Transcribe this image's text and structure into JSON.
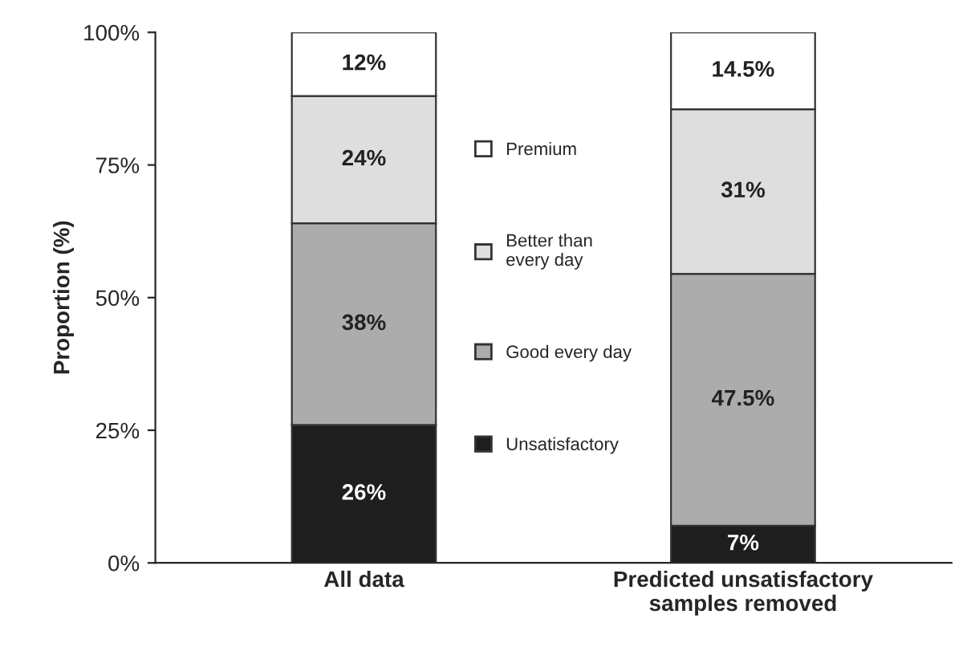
{
  "chart_data": {
    "type": "bar",
    "stacked": true,
    "ylabel": "Proportion (%)",
    "categories": [
      "All data",
      "Predicted unsatisfactory\nsamples removed"
    ],
    "series": [
      {
        "name": "Unsatisfactory",
        "color": "#1e1e1e",
        "values": [
          26,
          7
        ],
        "value_labels": [
          "26%",
          "7%"
        ]
      },
      {
        "name": "Good every day",
        "color": "#acacac",
        "values": [
          38,
          47.5
        ],
        "value_labels": [
          "38%",
          "47.5%"
        ]
      },
      {
        "name": "Better than\nevery day",
        "color": "#dedede",
        "values": [
          24,
          31
        ],
        "value_labels": [
          "24%",
          "31%"
        ]
      },
      {
        "name": "Premium",
        "color": "#ffffff",
        "values": [
          12,
          14.5
        ],
        "value_labels": [
          "12%",
          "14.5%"
        ]
      }
    ],
    "ylim": [
      0,
      100
    ],
    "yticks": [
      {
        "value": 0,
        "label": "0%"
      },
      {
        "value": 25,
        "label": "25%"
      },
      {
        "value": 50,
        "label": "50%"
      },
      {
        "value": 75,
        "label": "75%"
      },
      {
        "value": 100,
        "label": "100%"
      }
    ],
    "legend": "center",
    "grid": false
  }
}
